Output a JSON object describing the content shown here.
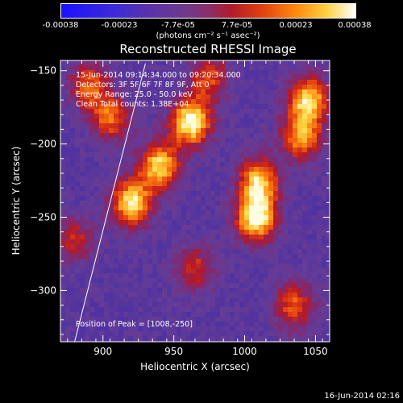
{
  "colorbar": {
    "ticks": [
      "-0.00038",
      "-0.00023",
      "-7.7e-05",
      "7.7e-05",
      "0.00023",
      "0.00038"
    ],
    "units": "(photons cm⁻² s⁻¹ asec⁻²)"
  },
  "chart_data": {
    "type": "heatmap",
    "title": "Reconstructed RHESSI Image",
    "xlabel": "Heliocentric X (arcsec)",
    "ylabel": "Heliocentric Y (arcsec)",
    "xlim": [
      870,
      1060
    ],
    "ylim": [
      -335,
      -143
    ],
    "xticks": [
      900,
      950,
      1000,
      1050
    ],
    "yticks": [
      -150,
      -200,
      -250,
      -300
    ],
    "colormap_range": [
      -0.00038,
      0.00038
    ],
    "peak": [
      1008,
      -250
    ],
    "limb_line": {
      "x": [
        880,
        930
      ],
      "y": [
        -335,
        -145
      ]
    },
    "blobs": [
      {
        "x": 962,
        "y": -185,
        "level": 1.0
      },
      {
        "x": 940,
        "y": -215,
        "level": 0.85
      },
      {
        "x": 920,
        "y": -240,
        "level": 0.9
      },
      {
        "x": 1008,
        "y": -250,
        "level": 1.0
      },
      {
        "x": 1010,
        "y": -225,
        "level": 0.8
      },
      {
        "x": 1045,
        "y": -170,
        "level": 0.85
      },
      {
        "x": 1040,
        "y": -195,
        "level": 0.7
      },
      {
        "x": 905,
        "y": -182,
        "level": 0.6
      },
      {
        "x": 890,
        "y": -160,
        "level": 0.55
      },
      {
        "x": 965,
        "y": -285,
        "level": 0.45
      },
      {
        "x": 1035,
        "y": -310,
        "level": 0.55
      },
      {
        "x": 880,
        "y": -265,
        "level": 0.4
      },
      {
        "x": 975,
        "y": -155,
        "level": 0.5
      }
    ]
  },
  "annotations": {
    "time_range": "15-Jun-2014 09:14:34.000 to 09:20:34.000",
    "detectors": "Detectors: 3F 5F 6F 7F 8F 9F, Att 0",
    "energy": "Energy Range: 25.0 - 50.0 keV",
    "clean": "Clean     Total counts: 1.38E+04",
    "peak": "Position of Peak = [1008,-250]"
  },
  "footer": {
    "date": "16-Jun-2014 02:16"
  }
}
